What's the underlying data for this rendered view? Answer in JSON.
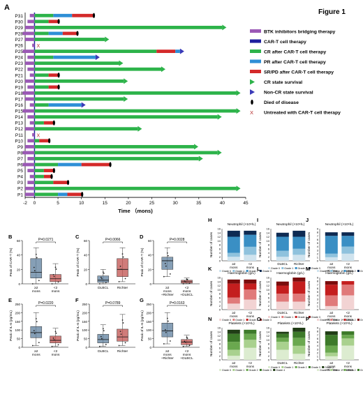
{
  "figure": {
    "letter": "A",
    "title": "Figure 1"
  },
  "swimmer": {
    "patients": [
      "P31",
      "P30",
      "P29",
      "P28",
      "P27",
      "P26",
      "P25",
      "P24",
      "P23",
      "P22",
      "P21",
      "P20",
      "P19",
      "P18",
      "P17",
      "P16",
      "P15",
      "P14",
      "P13",
      "P12",
      "P11",
      "P10",
      "P9",
      "P8",
      "P7",
      "P6",
      "P5",
      "P4",
      "P3",
      "P2",
      "P1"
    ],
    "xticks": [
      -2,
      0,
      5,
      10,
      15,
      20,
      25,
      30,
      35,
      40,
      45
    ],
    "xlabel": "Time （mons)",
    "legend": [
      {
        "label": "BTK inhibitors bridging therapy",
        "color": "#9b59b6",
        "shape": "bar"
      },
      {
        "label": "CAR-T cell therapy",
        "color": "#1f1f9e",
        "shape": "bar"
      },
      {
        "label": "CR after CAR-T cell therapy",
        "color": "#2db34a",
        "shape": "bar"
      },
      {
        "label": "PR after CAR-T cell therapy",
        "color": "#2e8fd6",
        "shape": "bar"
      },
      {
        "label": "SR/PD after CAR-T cell therapy",
        "color": "#d42a2a",
        "shape": "bar"
      },
      {
        "label": "CR state survival",
        "color": "#2db34a",
        "shape": "arrow"
      },
      {
        "label": "Non-CR state survival",
        "color": "#3a3ab8",
        "shape": "arrow"
      },
      {
        "label": "Died of disease",
        "color": "#000000",
        "shape": "dot"
      },
      {
        "label": "Untreated with CAR-T cell therapy",
        "color": "#b52a2a",
        "shape": "x"
      }
    ],
    "rows": [
      {
        "id": "P31",
        "bridge": -1,
        "segs": [
          [
            "CR",
            4
          ],
          [
            "PR",
            8
          ],
          [
            "SR",
            12.5
          ]
        ],
        "end": "died"
      },
      {
        "id": "P30",
        "bridge": -1.5,
        "segs": [
          [
            "CR",
            3
          ],
          [
            "SR",
            5
          ]
        ],
        "end": "died"
      },
      {
        "id": "P29",
        "bridge": -2,
        "segs": [
          [
            "CR",
            40
          ]
        ],
        "end": "cr"
      },
      {
        "id": "P28",
        "bridge": -2.5,
        "segs": [
          [
            "CR",
            3
          ],
          [
            "PR",
            6
          ],
          [
            "SR",
            9
          ]
        ],
        "end": "died"
      },
      {
        "id": "P27",
        "bridge": -2,
        "segs": [
          [
            "CR",
            15
          ]
        ],
        "end": "cr"
      },
      {
        "id": "P26",
        "bridge": -0.5,
        "segs": [],
        "end": "x"
      },
      {
        "id": "P25",
        "bridge": -2.5,
        "segs": [
          [
            "CR",
            26
          ],
          [
            "SR",
            30
          ],
          [
            "PR",
            31
          ]
        ],
        "end": "noncr"
      },
      {
        "id": "P24",
        "bridge": -1.5,
        "segs": [
          [
            "CR",
            4
          ],
          [
            "PR",
            13
          ]
        ],
        "end": "noncr"
      },
      {
        "id": "P23",
        "bridge": -2,
        "segs": [
          [
            "CR",
            18
          ]
        ],
        "end": "cr"
      },
      {
        "id": "P22",
        "bridge": -1.5,
        "segs": [
          [
            "CR",
            27
          ]
        ],
        "end": "cr"
      },
      {
        "id": "P21",
        "bridge": -1,
        "segs": [
          [
            "CR",
            3
          ],
          [
            "SR",
            5
          ]
        ],
        "end": "died"
      },
      {
        "id": "P20",
        "bridge": -2,
        "segs": [
          [
            "CR",
            19
          ]
        ],
        "end": "cr"
      },
      {
        "id": "P19",
        "bridge": -1.5,
        "segs": [
          [
            "CR",
            3
          ],
          [
            "SR",
            5
          ]
        ],
        "end": "died"
      },
      {
        "id": "P18",
        "bridge": -2.5,
        "segs": [
          [
            "CR",
            43
          ]
        ],
        "end": "cr"
      },
      {
        "id": "P17",
        "bridge": -2,
        "segs": [
          [
            "CR",
            19
          ]
        ],
        "end": "cr"
      },
      {
        "id": "P16",
        "bridge": -1,
        "segs": [
          [
            "CR",
            3
          ],
          [
            "PR",
            10
          ]
        ],
        "end": "noncr"
      },
      {
        "id": "P15",
        "bridge": -2.5,
        "segs": [
          [
            "CR",
            43
          ]
        ],
        "end": "cr"
      },
      {
        "id": "P14",
        "bridge": -1.5,
        "segs": [
          [
            "CR",
            39
          ]
        ],
        "end": "cr"
      },
      {
        "id": "P13",
        "bridge": -1,
        "segs": [
          [
            "CR",
            2
          ],
          [
            "SR",
            4
          ]
        ],
        "end": "died"
      },
      {
        "id": "P12",
        "bridge": -2,
        "segs": [
          [
            "CR",
            22
          ]
        ],
        "end": "cr"
      },
      {
        "id": "P11",
        "bridge": -0.5,
        "segs": [],
        "end": "x"
      },
      {
        "id": "P10",
        "bridge": -1.5,
        "segs": [
          [
            "CR",
            1
          ],
          [
            "SR",
            3
          ]
        ],
        "end": "died"
      },
      {
        "id": "P9",
        "bridge": -2,
        "segs": [
          [
            "CR",
            34
          ]
        ],
        "end": "cr"
      },
      {
        "id": "P8",
        "bridge": -2.5,
        "segs": [
          [
            "CR",
            39
          ]
        ],
        "end": "cr"
      },
      {
        "id": "P7",
        "bridge": -1.5,
        "segs": [
          [
            "CR",
            35
          ]
        ],
        "end": "cr"
      },
      {
        "id": "P6",
        "bridge": -2.5,
        "segs": [
          [
            "CR",
            5
          ],
          [
            "PR",
            10
          ],
          [
            "SR",
            16
          ]
        ],
        "end": "died"
      },
      {
        "id": "P5",
        "bridge": -1.5,
        "segs": [
          [
            "CR",
            2
          ],
          [
            "SR",
            4
          ]
        ],
        "end": "died"
      },
      {
        "id": "P4",
        "bridge": -1,
        "segs": [
          [
            "CR",
            2
          ],
          [
            "SR",
            3.5
          ]
        ],
        "end": "died"
      },
      {
        "id": "P3",
        "bridge": -1.5,
        "segs": [
          [
            "CR",
            4
          ],
          [
            "SR",
            7
          ]
        ],
        "end": "died"
      },
      {
        "id": "P2",
        "bridge": -2,
        "segs": [
          [
            "CR",
            43
          ]
        ],
        "end": "cr"
      },
      {
        "id": "P1",
        "bridge": -2,
        "segs": [
          [
            "CR",
            5
          ],
          [
            "PR",
            7
          ],
          [
            "SR",
            10
          ]
        ],
        "end": "died"
      }
    ]
  },
  "boxes": [
    {
      "letter": "B",
      "ylabel": "Peak of CAR-T (%)",
      "pval": "P=0.0271",
      "cats": [
        "≥2 mons",
        "<2 mons"
      ],
      "yticks": [
        0,
        20,
        40,
        60
      ],
      "ymax": 60,
      "groups": [
        {
          "q1": 8,
          "med": 16,
          "q3": 35,
          "lo": 0,
          "hi": 50,
          "color": "#5e7f9e"
        },
        {
          "q1": 3,
          "med": 7,
          "q3": 13,
          "lo": 0,
          "hi": 28,
          "color": "#c0504d"
        }
      ]
    },
    {
      "letter": "C",
      "ylabel": "Peak of CAR-T (%)",
      "pval": "P=0.0066",
      "cats": [
        "DLBCL",
        "Richter"
      ],
      "yticks": [
        0,
        20,
        40,
        60
      ],
      "ymax": 60,
      "groups": [
        {
          "q1": 2,
          "med": 5,
          "q3": 11,
          "lo": 0,
          "hi": 20,
          "color": "#5e7f9e"
        },
        {
          "q1": 10,
          "med": 20,
          "q3": 35,
          "lo": 3,
          "hi": 50,
          "color": "#c0504d"
        }
      ]
    },
    {
      "letter": "D",
      "ylabel": "Peak of CAR-T (%)",
      "pval": "P=0.0028",
      "cats": [
        "≥2 mons +Richter",
        "<2 mons +DLBCL"
      ],
      "yticks": [
        0,
        20,
        40,
        60
      ],
      "ymax": 60,
      "groups": [
        {
          "q1": 20,
          "med": 32,
          "q3": 37,
          "lo": 10,
          "hi": 50,
          "color": "#5e7f9e"
        },
        {
          "q1": 1,
          "med": 3,
          "q3": 5,
          "lo": 0,
          "hi": 8,
          "color": "#c0504d"
        }
      ]
    },
    {
      "letter": "E",
      "ylabel": "Peak of IL-6 (pg/mL)",
      "pval": "P=0.0220",
      "cats": [
        "≥2 mons",
        "<2 mons"
      ],
      "yticks": [
        0,
        50,
        100,
        150,
        200,
        250
      ],
      "ymax": 250,
      "groups": [
        {
          "q1": 55,
          "med": 85,
          "q3": 120,
          "lo": 10,
          "hi": 200,
          "color": "#5e7f9e"
        },
        {
          "q1": 25,
          "med": 40,
          "q3": 65,
          "lo": 5,
          "hi": 110,
          "color": "#c0504d"
        }
      ]
    },
    {
      "letter": "F",
      "ylabel": "Peak of IL-6 (pg/mL)",
      "pval": "P=0.0789",
      "cats": [
        "DLBCL",
        "Richter"
      ],
      "yticks": [
        0,
        50,
        100,
        150,
        200,
        250
      ],
      "ymax": 250,
      "groups": [
        {
          "q1": 25,
          "med": 45,
          "q3": 75,
          "lo": 5,
          "hi": 130,
          "color": "#5e7f9e"
        },
        {
          "q1": 35,
          "med": 60,
          "q3": 105,
          "lo": 10,
          "hi": 190,
          "color": "#c0504d"
        }
      ]
    },
    {
      "letter": "G",
      "ylabel": "Peak of IL-6 (pg/mL)",
      "pval": "P=0.0163",
      "cats": [
        "≥2 mons +Richter",
        "<2 mons +DLBCL"
      ],
      "yticks": [
        0,
        50,
        100,
        150,
        200,
        250
      ],
      "ymax": 250,
      "groups": [
        {
          "q1": 60,
          "med": 95,
          "q3": 140,
          "lo": 20,
          "hi": 200,
          "color": "#5e7f9e"
        },
        {
          "q1": 15,
          "med": 30,
          "q3": 45,
          "lo": 5,
          "hi": 70,
          "color": "#c0504d"
        }
      ]
    }
  ],
  "stacks": [
    {
      "letter": "H",
      "title": "Neutrophil (×10⁹/L)",
      "ylabel": "Number of cases",
      "cats": [
        "≥2 mons",
        "<2 mons"
      ],
      "yticks": [
        0,
        2,
        4,
        6,
        8,
        10,
        12,
        14,
        16
      ],
      "ymax": 16,
      "grades": [
        "Grade 0",
        "Grade 1",
        "Grade 2",
        "Grade 3"
      ],
      "colors": [
        "#cfe3ee",
        "#8fc2dd",
        "#3a8fc4",
        "#0d2a52"
      ],
      "values": [
        [
          2,
          2,
          8,
          3
        ],
        [
          3,
          4,
          6,
          2
        ]
      ]
    },
    {
      "letter": "I",
      "title": "Neutrophil (×10⁹/L)",
      "ylabel": "Number of cases",
      "cats": [
        "DLBCL",
        "Richter"
      ],
      "yticks": [
        0,
        2,
        4,
        6,
        8,
        10,
        12,
        14,
        16
      ],
      "ymax": 16,
      "grades": [
        "Grade 0",
        "Grade 1",
        "Grade 2",
        "Grade 3"
      ],
      "colors": [
        "#cfe3ee",
        "#8fc2dd",
        "#3a8fc4",
        "#0d2a52"
      ],
      "values": [
        [
          2,
          3,
          7,
          2
        ],
        [
          3,
          3,
          6,
          3
        ]
      ]
    },
    {
      "letter": "J",
      "title": "Neutrophil (×10⁹/L)",
      "ylabel": "Number of cases",
      "cats": [
        "≥2 mons +Richter",
        "<2 mons +DLBCL"
      ],
      "yticks": [
        0,
        1,
        2,
        3,
        4,
        5,
        6,
        7,
        8,
        9
      ],
      "ymax": 9,
      "grades": [
        "Grade 0",
        "Grade 1",
        "Grade 2",
        "Grade 3"
      ],
      "colors": [
        "#cfe3ee",
        "#8fc2dd",
        "#3a8fc4",
        "#0d2a52"
      ],
      "values": [
        [
          1,
          1,
          5,
          1
        ],
        [
          2,
          2,
          3,
          1
        ]
      ]
    },
    {
      "letter": "K",
      "title": "Haemoglobin (g/L)",
      "ylabel": "Number of cases",
      "cats": [
        "≥2 mons",
        "<2 mons"
      ],
      "yticks": [
        0,
        2,
        4,
        6,
        8,
        10,
        12,
        14,
        16
      ],
      "ymax": 16,
      "grades": [
        "Grade 0",
        "Grade 1",
        "Grade 2",
        "Grade 3"
      ],
      "colors": [
        "#f2d3d3",
        "#e07a7a",
        "#c41e1e",
        "#7a0c0c"
      ],
      "values": [
        [
          3,
          3,
          7,
          2
        ],
        [
          5,
          5,
          3,
          2
        ]
      ]
    },
    {
      "letter": "L",
      "title": "Haemoglobin (g/L)",
      "ylabel": "Number of cases",
      "cats": [
        "DLBCL",
        "Richter"
      ],
      "yticks": [
        0,
        2,
        4,
        6,
        8,
        10,
        12,
        14,
        16
      ],
      "ymax": 16,
      "grades": [
        "Grade 0",
        "Grade 1",
        "Grade 2",
        "Grade 3"
      ],
      "colors": [
        "#f2d3d3",
        "#e07a7a",
        "#c41e1e",
        "#7a0c0c"
      ],
      "values": [
        [
          4,
          4,
          4,
          2
        ],
        [
          4,
          4,
          6,
          2
        ]
      ]
    },
    {
      "letter": "M",
      "title": "Haemoglobin (g/L)",
      "ylabel": "Number of cases",
      "cats": [
        "≥2 mons +Richter",
        "<2 mons +DLBCL"
      ],
      "yticks": [
        0,
        1,
        2,
        3,
        4,
        5,
        6,
        7,
        8,
        9
      ],
      "ymax": 9,
      "grades": [
        "Grade 0",
        "Grade 1",
        "Grade 2",
        "Grade 3"
      ],
      "colors": [
        "#f2d3d3",
        "#e07a7a",
        "#c41e1e",
        "#7a0c0c"
      ],
      "values": [
        [
          1,
          3,
          3,
          1
        ],
        [
          4,
          3,
          1,
          0
        ]
      ]
    },
    {
      "letter": "N",
      "title": "Platelets (×10⁹/L)",
      "ylabel": "Number of cases",
      "cats": [
        "≥2 mons",
        "<2 mons"
      ],
      "yticks": [
        0,
        2,
        4,
        6,
        8,
        10,
        12,
        14,
        16
      ],
      "ymax": 16,
      "grades": [
        "Grade 0",
        "Grade 1",
        "Grade 2",
        "Grade 3",
        "Grade 4"
      ],
      "colors": [
        "#dcecd0",
        "#a9d18e",
        "#6aa84f",
        "#3d7a2a",
        "#203d16"
      ],
      "values": [
        [
          2,
          3,
          4,
          4,
          2
        ],
        [
          6,
          4,
          3,
          2,
          0
        ]
      ]
    },
    {
      "letter": "O",
      "title": "Platelets (×10⁹/L)",
      "ylabel": "Number of cases",
      "cats": [
        "DLBCL",
        "Richter"
      ],
      "yticks": [
        0,
        2,
        4,
        6,
        8,
        10,
        12,
        14,
        16
      ],
      "ymax": 16,
      "grades": [
        "Grade 0",
        "Grade 1",
        "Grade 2",
        "Grade 3",
        "Grade 4"
      ],
      "colors": [
        "#dcecd0",
        "#a9d18e",
        "#6aa84f",
        "#3d7a2a",
        "#203d16"
      ],
      "values": [
        [
          5,
          4,
          2,
          2,
          1
        ],
        [
          3,
          4,
          4,
          3,
          2
        ]
      ]
    },
    {
      "letter": "P",
      "title": "Platelets (×10⁹/L)",
      "ylabel": "Number of cases",
      "cats": [
        "≥2 mons +Richter",
        "<2 mons +DLBCL"
      ],
      "yticks": [
        0,
        1,
        2,
        3,
        4,
        5,
        6,
        7,
        8,
        9
      ],
      "ymax": 9,
      "grades": [
        "Grade 0",
        "Grade 1",
        "Grade 2",
        "Grade 3",
        "Grade 4"
      ],
      "colors": [
        "#dcecd0",
        "#a9d18e",
        "#6aa84f",
        "#3d7a2a",
        "#203d16"
      ],
      "values": [
        [
          1,
          1,
          2,
          3,
          1
        ],
        [
          4,
          2,
          1,
          1,
          0
        ]
      ]
    }
  ],
  "chart_data": [
    {
      "type": "bar",
      "subtype": "swimmer",
      "xlabel": "Time （mons)",
      "xlim": [
        -2,
        45
      ]
    },
    {
      "type": "box",
      "panels": [
        "B",
        "C",
        "D",
        "E",
        "F",
        "G"
      ]
    },
    {
      "type": "bar",
      "subtype": "stacked",
      "panels": [
        "H",
        "I",
        "J",
        "K",
        "L",
        "M",
        "N",
        "O",
        "P"
      ]
    }
  ]
}
